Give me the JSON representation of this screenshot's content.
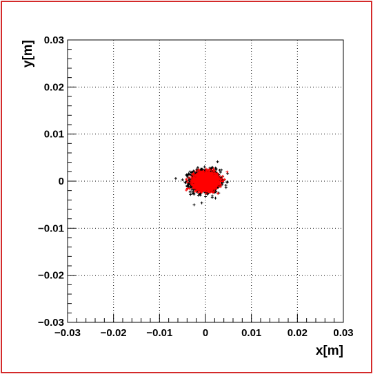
{
  "chart_data": {
    "type": "scatter",
    "title": "",
    "xlabel": "x[m]",
    "ylabel": "y[m]",
    "xlim": [
      -0.03,
      0.03
    ],
    "ylim": [
      -0.03,
      0.03
    ],
    "x_ticks": [
      -0.03,
      -0.02,
      -0.01,
      0,
      0.01,
      0.02,
      0.03
    ],
    "y_ticks": [
      -0.03,
      -0.02,
      -0.01,
      0,
      0.01,
      0.02,
      0.03
    ],
    "x_tick_labels": [
      "−0.03",
      "−0.02",
      "−0.01",
      "0",
      "0.01",
      "0.02",
      "0.03"
    ],
    "y_tick_labels": [
      "−0.03",
      "−0.02",
      "−0.01",
      "0",
      "0.01",
      "0.02",
      "0.03"
    ],
    "grid": true,
    "grid_style": "dotted",
    "series": [
      {
        "marker": "cross",
        "color": "#000000",
        "distribution": "gaussian",
        "center": [
          0,
          0
        ],
        "std_x": 0.0016,
        "std_y": 0.0012,
        "count": 1200
      },
      {
        "marker": "cross",
        "color": "#ff0000",
        "distribution": "gaussian",
        "center": [
          0,
          0
        ],
        "std_x": 0.0013,
        "std_y": 0.0009,
        "count": 1500
      }
    ]
  },
  "colors": {
    "frame_border": "#d42a2a",
    "axis": "#000000",
    "grid": "#000000"
  }
}
